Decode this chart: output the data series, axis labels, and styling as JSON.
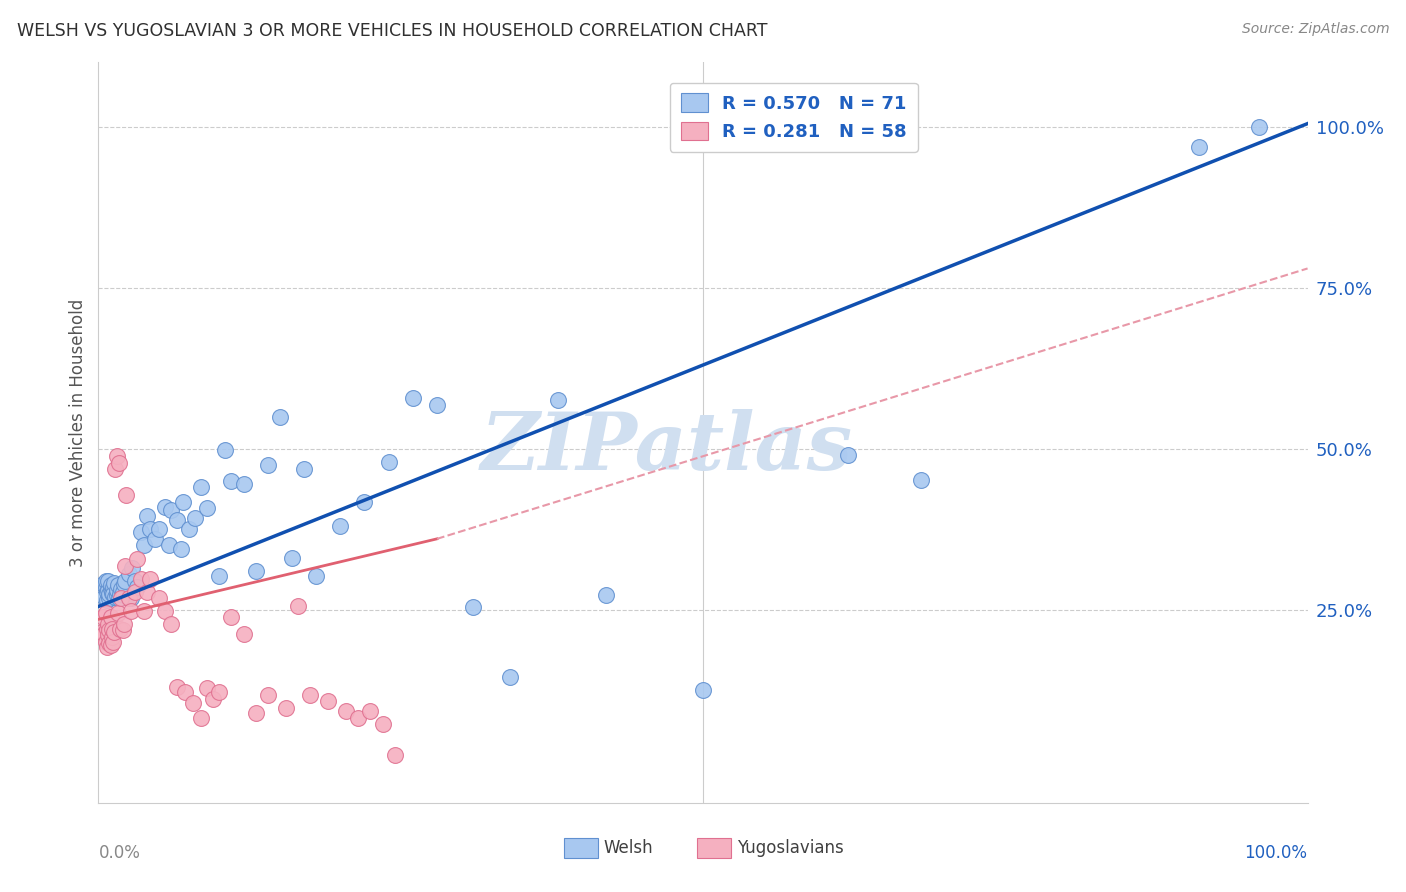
{
  "title": "WELSH VS YUGOSLAVIAN 3 OR MORE VEHICLES IN HOUSEHOLD CORRELATION CHART",
  "source": "Source: ZipAtlas.com",
  "ylabel": "3 or more Vehicles in Household",
  "xlim": [
    0,
    1.0
  ],
  "ylim": [
    -0.05,
    1.1
  ],
  "ytick_labels": [
    "25.0%",
    "50.0%",
    "75.0%",
    "100.0%"
  ],
  "ytick_vals": [
    0.25,
    0.5,
    0.75,
    1.0
  ],
  "welsh_R": 0.57,
  "welsh_N": 71,
  "yugo_R": 0.281,
  "yugo_N": 58,
  "welsh_color": "#A8C8F0",
  "yugo_color": "#F5B0C0",
  "welsh_edge": "#6090D0",
  "yugo_edge": "#E07090",
  "line_blue": "#1050B0",
  "line_pink_solid": "#E06070",
  "line_pink_dash": "#E898A8",
  "legend_text_color": "#2060C0",
  "legend_N_color": "#404040",
  "title_color": "#303030",
  "watermark": "ZIPatlas",
  "watermark_color": "#D0DFF0",
  "welsh_x": [
    0.004,
    0.005,
    0.006,
    0.006,
    0.007,
    0.007,
    0.008,
    0.008,
    0.009,
    0.009,
    0.01,
    0.01,
    0.011,
    0.012,
    0.012,
    0.013,
    0.014,
    0.015,
    0.015,
    0.016,
    0.017,
    0.018,
    0.019,
    0.02,
    0.021,
    0.022,
    0.025,
    0.027,
    0.028,
    0.03,
    0.032,
    0.035,
    0.038,
    0.04,
    0.043,
    0.047,
    0.05,
    0.055,
    0.058,
    0.06,
    0.065,
    0.068,
    0.07,
    0.075,
    0.08,
    0.085,
    0.09,
    0.1,
    0.105,
    0.11,
    0.12,
    0.13,
    0.14,
    0.15,
    0.16,
    0.17,
    0.18,
    0.2,
    0.22,
    0.24,
    0.26,
    0.28,
    0.31,
    0.34,
    0.38,
    0.42,
    0.5,
    0.62,
    0.68,
    0.91,
    0.96
  ],
  "welsh_y": [
    0.29,
    0.27,
    0.285,
    0.295,
    0.265,
    0.278,
    0.28,
    0.295,
    0.268,
    0.275,
    0.282,
    0.288,
    0.276,
    0.285,
    0.275,
    0.292,
    0.27,
    0.272,
    0.28,
    0.288,
    0.268,
    0.275,
    0.282,
    0.278,
    0.29,
    0.295,
    0.305,
    0.268,
    0.315,
    0.295,
    0.285,
    0.37,
    0.35,
    0.395,
    0.375,
    0.36,
    0.375,
    0.41,
    0.35,
    0.405,
    0.39,
    0.345,
    0.418,
    0.375,
    0.392,
    0.44,
    0.408,
    0.302,
    0.498,
    0.45,
    0.445,
    0.31,
    0.475,
    0.55,
    0.33,
    0.468,
    0.302,
    0.38,
    0.418,
    0.48,
    0.578,
    0.568,
    0.254,
    0.145,
    0.575,
    0.272,
    0.125,
    0.49,
    0.452,
    0.968,
    1.0
  ],
  "yugo_x": [
    0.003,
    0.004,
    0.005,
    0.006,
    0.006,
    0.007,
    0.007,
    0.008,
    0.008,
    0.009,
    0.009,
    0.01,
    0.01,
    0.011,
    0.011,
    0.012,
    0.013,
    0.014,
    0.015,
    0.016,
    0.017,
    0.018,
    0.019,
    0.02,
    0.021,
    0.022,
    0.023,
    0.025,
    0.027,
    0.03,
    0.032,
    0.035,
    0.038,
    0.04,
    0.043,
    0.05,
    0.055,
    0.06,
    0.065,
    0.072,
    0.078,
    0.085,
    0.09,
    0.095,
    0.1,
    0.11,
    0.12,
    0.13,
    0.14,
    0.155,
    0.165,
    0.175,
    0.19,
    0.205,
    0.215,
    0.225,
    0.235,
    0.245
  ],
  "yugo_y": [
    0.215,
    0.238,
    0.212,
    0.245,
    0.2,
    0.22,
    0.192,
    0.228,
    0.21,
    0.198,
    0.218,
    0.195,
    0.238,
    0.208,
    0.22,
    0.2,
    0.215,
    0.468,
    0.488,
    0.245,
    0.478,
    0.22,
    0.268,
    0.218,
    0.228,
    0.318,
    0.428,
    0.268,
    0.248,
    0.278,
    0.328,
    0.298,
    0.248,
    0.278,
    0.298,
    0.268,
    0.248,
    0.228,
    0.13,
    0.122,
    0.105,
    0.082,
    0.128,
    0.112,
    0.122,
    0.238,
    0.212,
    0.09,
    0.118,
    0.098,
    0.255,
    0.118,
    0.108,
    0.092,
    0.082,
    0.092,
    0.072,
    0.025
  ]
}
